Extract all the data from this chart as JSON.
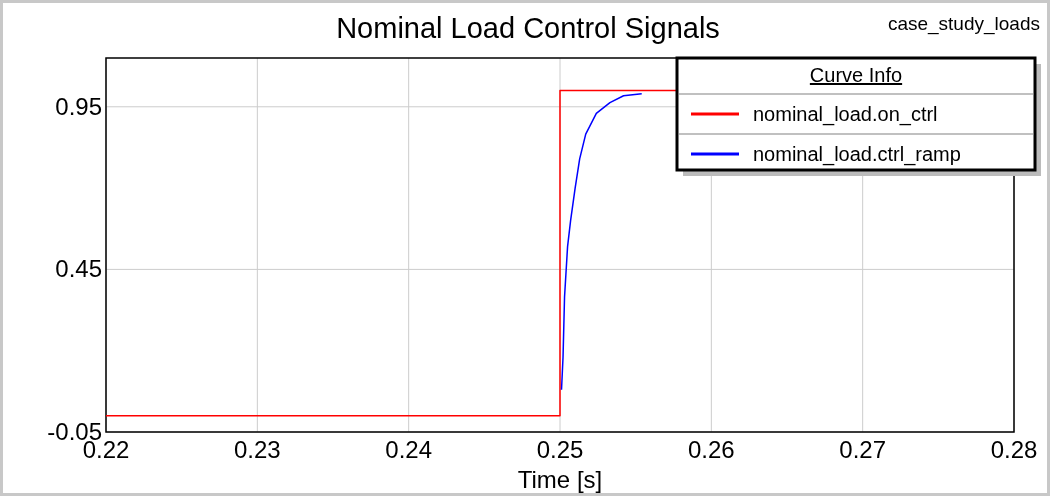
{
  "chart_data": {
    "type": "line",
    "title": "Nominal Load Control Signals",
    "subtitle": "case_study_loads",
    "xlabel": "Time [s]",
    "legend_title": "Curve Info",
    "legend": "top right",
    "grid": true,
    "xlim": [
      0.22,
      0.28
    ],
    "xticks": [
      0.22,
      0.23,
      0.24,
      0.25,
      0.26,
      0.27,
      0.28
    ],
    "ylim": [
      -0.05,
      1.1
    ],
    "yticks": [
      -0.05,
      0.45,
      0.95
    ],
    "series": [
      {
        "name": "nominal_load.on_ctrl",
        "color": "#ff0000",
        "x": [
          0.22,
          0.25,
          0.25,
          0.2577
        ],
        "values": [
          0,
          0,
          1,
          1
        ]
      },
      {
        "name": "nominal_load.ctrl_ramp",
        "color": "#0000ff",
        "x": [
          0.2501,
          0.2502,
          0.2503,
          0.2505,
          0.2507,
          0.251,
          0.2513,
          0.2517,
          0.2524,
          0.2533,
          0.2542,
          0.2554
        ],
        "values": [
          0.08,
          0.18,
          0.365,
          0.52,
          0.6,
          0.7,
          0.79,
          0.866,
          0.93,
          0.963,
          0.984,
          0.99
        ]
      }
    ]
  }
}
